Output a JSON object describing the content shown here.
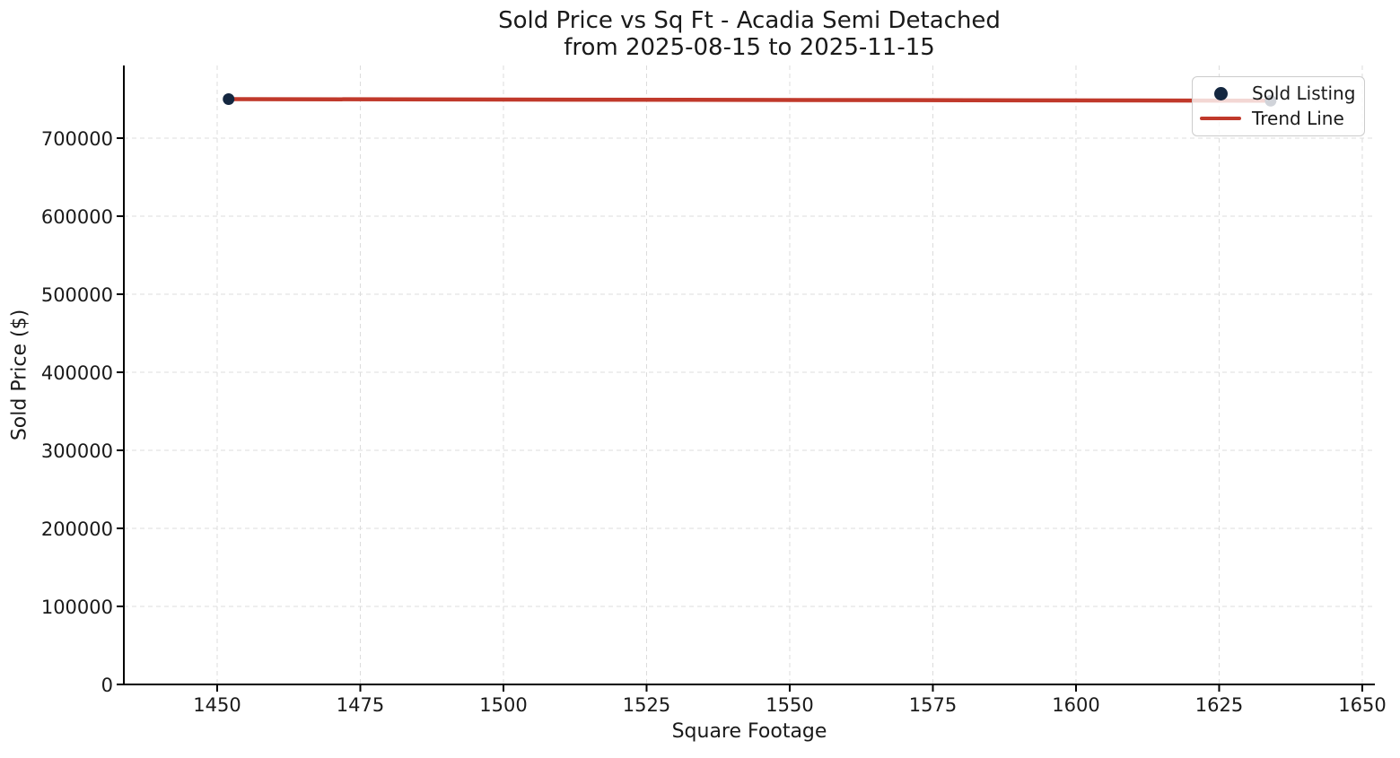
{
  "chart_data": {
    "type": "scatter",
    "title": "Sold Price vs Sq Ft - Acadia Semi Detached",
    "subtitle": "from 2025-08-15 to 2025-11-15",
    "xlabel": "Square Footage",
    "ylabel": "Sold Price ($)",
    "x_ticks": [
      1450,
      1475,
      1500,
      1525,
      1550,
      1575,
      1600,
      1625,
      1650
    ],
    "y_ticks": [
      0,
      100000,
      200000,
      300000,
      400000,
      500000,
      600000,
      700000
    ],
    "xlim": [
      1433.7,
      1652.2
    ],
    "ylim": [
      0,
      793100
    ],
    "grid": true,
    "grid_color": "#dcdcdc",
    "axis_color": "#000000",
    "text_color": "#1a1a1a",
    "legend_position": "upper right",
    "series": [
      {
        "name": "Sold Listing",
        "type": "scatter",
        "color": "#142740",
        "points": [
          [
            1452,
            750000
          ],
          [
            1634,
            748000
          ]
        ]
      },
      {
        "name": "Trend Line",
        "type": "line",
        "color": "#c0392b",
        "points": [
          [
            1452,
            750000
          ],
          [
            1634,
            748000
          ]
        ]
      }
    ]
  }
}
